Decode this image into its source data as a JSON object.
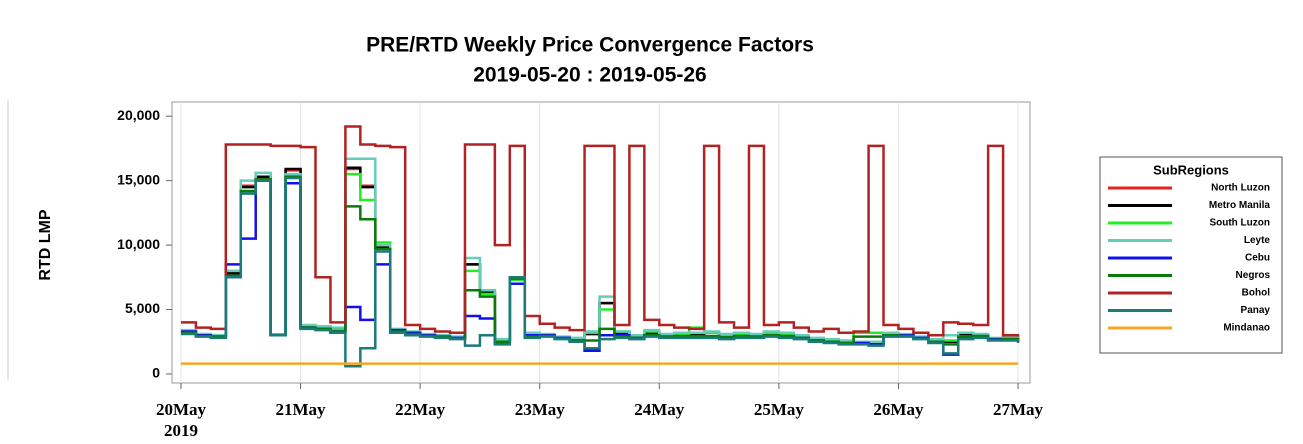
{
  "chart_data": {
    "type": "line",
    "step": true,
    "title": "PRE/RTD Weekly Price Convergence Factors",
    "subtitle": "2019-05-20 : 2019-05-26",
    "y_label": "RTD LMP",
    "x_year": "2019",
    "legend_title": "SubRegions",
    "legend_position": "right",
    "grid": true,
    "xlim": [
      -1.8,
      170.4
    ],
    "xticks": [
      {
        "value": 0,
        "label": "20May"
      },
      {
        "value": 24,
        "label": "21May"
      },
      {
        "value": 48,
        "label": "22May"
      },
      {
        "value": 72,
        "label": "23May"
      },
      {
        "value": 96,
        "label": "24May"
      },
      {
        "value": 120,
        "label": "25May"
      },
      {
        "value": 144,
        "label": "26May"
      },
      {
        "value": 168,
        "label": "27May"
      }
    ],
    "ylim": [
      -700,
      21100
    ],
    "yticks": [
      0,
      {
        "value": 5000,
        "label": "5,000"
      },
      {
        "value": 10000,
        "label": "10,000"
      },
      {
        "value": 15000,
        "label": "15,000"
      },
      {
        "value": 20000,
        "label": "20,000"
      }
    ],
    "x": [
      0,
      3,
      6,
      9,
      12,
      15,
      18,
      21,
      24,
      27,
      30,
      33,
      36,
      39,
      42,
      45,
      48,
      51,
      54,
      57,
      60,
      63,
      66,
      69,
      72,
      75,
      78,
      81,
      84,
      87,
      90,
      93,
      96,
      99,
      102,
      105,
      108,
      111,
      114,
      117,
      120,
      123,
      126,
      129,
      132,
      135,
      138,
      141,
      144,
      147,
      150,
      153,
      156,
      159,
      162,
      165,
      168
    ],
    "series": [
      {
        "name": "North Luzon",
        "color": "#e8211e",
        "values": [
          3350,
          3050,
          2950,
          7900,
          14600,
          15200,
          3050,
          15800,
          3750,
          3650,
          3550,
          15900,
          14600,
          9900,
          3400,
          3200,
          3000,
          2900,
          2800,
          8500,
          6300,
          2600,
          7400,
          3100,
          3000,
          2800,
          2700,
          3100,
          5500,
          3200,
          2900,
          3200,
          3000,
          3100,
          3100,
          3200,
          3000,
          3100,
          3000,
          3200,
          3100,
          2900,
          2700,
          2600,
          2500,
          2400,
          2400,
          3100,
          3000,
          2800,
          2600,
          2500,
          3100,
          3000,
          2700,
          2800,
          2600
        ]
      },
      {
        "name": "Metro Manila",
        "color": "#000000",
        "values": [
          3300,
          3000,
          2900,
          7800,
          14500,
          15300,
          3000,
          15900,
          3700,
          3600,
          3500,
          16000,
          14500,
          9800,
          3400,
          3200,
          3000,
          2900,
          2800,
          8500,
          6300,
          2600,
          7400,
          3100,
          3000,
          2800,
          2700,
          3100,
          5500,
          3200,
          2900,
          3200,
          3000,
          3100,
          3100,
          3200,
          3000,
          3100,
          3000,
          3200,
          3100,
          2900,
          2700,
          2600,
          2500,
          2400,
          2400,
          3100,
          3000,
          2800,
          2600,
          2500,
          3100,
          3000,
          2700,
          2800,
          2600
        ]
      },
      {
        "name": "South Luzon",
        "color": "#22ee22",
        "values": [
          3300,
          3000,
          2900,
          7600,
          14000,
          15000,
          3000,
          15400,
          3600,
          3500,
          3400,
          15500,
          13500,
          10200,
          3400,
          3200,
          3000,
          2900,
          2800,
          8000,
          6200,
          2600,
          7300,
          3100,
          3000,
          2800,
          2700,
          3200,
          5000,
          3300,
          3000,
          3300,
          3000,
          3100,
          3600,
          3200,
          3000,
          3100,
          3000,
          3200,
          3100,
          2900,
          2700,
          2600,
          2500,
          3200,
          3200,
          3100,
          3000,
          2800,
          2600,
          2600,
          3200,
          3000,
          2700,
          2800,
          2600
        ]
      },
      {
        "name": "Leyte",
        "color": "#66ccbb",
        "values": [
          3400,
          3100,
          3000,
          8000,
          15000,
          15600,
          3000,
          15500,
          3800,
          3700,
          3600,
          16700,
          16700,
          10000,
          3500,
          3300,
          3100,
          3000,
          2900,
          9000,
          6500,
          2700,
          7500,
          3200,
          3100,
          2900,
          2800,
          3300,
          6000,
          3300,
          3000,
          3400,
          3100,
          3200,
          3200,
          3300,
          3100,
          3200,
          3100,
          3300,
          3200,
          3000,
          2800,
          2700,
          2600,
          2500,
          2500,
          3200,
          3100,
          2900,
          2700,
          3000,
          3200,
          3100,
          2800,
          2900,
          2700
        ]
      },
      {
        "name": "Cebu",
        "color": "#1010ee",
        "values": [
          3300,
          3000,
          2900,
          8500,
          10500,
          15000,
          3000,
          14800,
          3600,
          3500,
          3300,
          5200,
          4200,
          8500,
          3400,
          3200,
          3000,
          2900,
          2800,
          4500,
          4300,
          2400,
          7000,
          3000,
          3000,
          2800,
          2600,
          1800,
          3000,
          3000,
          2800,
          3000,
          2900,
          2900,
          2900,
          2900,
          2800,
          2900,
          2900,
          3000,
          2900,
          2800,
          2600,
          2500,
          2400,
          2400,
          2300,
          3000,
          3000,
          2800,
          2500,
          1500,
          2800,
          2900,
          2700,
          2700,
          2500
        ]
      },
      {
        "name": "Negros",
        "color": "#0a7a0a",
        "values": [
          3200,
          2950,
          2850,
          7600,
          14200,
          15100,
          3000,
          15300,
          3600,
          3500,
          3300,
          13000,
          12000,
          9700,
          3300,
          3100,
          2950,
          2850,
          2750,
          6500,
          6000,
          2500,
          7400,
          2900,
          2950,
          2750,
          2600,
          2600,
          3500,
          2900,
          2800,
          3000,
          2900,
          2950,
          2950,
          2950,
          2850,
          2950,
          2900,
          3000,
          2950,
          2800,
          2600,
          2500,
          2400,
          2900,
          2900,
          3000,
          2950,
          2750,
          2500,
          2300,
          2900,
          2950,
          2650,
          2700,
          2500
        ]
      },
      {
        "name": "Bohol",
        "color": "#b22222",
        "values": [
          4000,
          3600,
          3500,
          17800,
          17800,
          17800,
          17700,
          17700,
          17600,
          7500,
          4000,
          19200,
          17800,
          17700,
          17600,
          3800,
          3500,
          3300,
          3200,
          17800,
          17800,
          10000,
          17700,
          4500,
          3900,
          3600,
          3400,
          17700,
          17700,
          3800,
          17700,
          4200,
          3800,
          3600,
          3500,
          17700,
          4000,
          3600,
          17700,
          3800,
          4000,
          3600,
          3300,
          3500,
          3200,
          3300,
          17700,
          3800,
          3500,
          3200,
          3000,
          4000,
          3900,
          3800,
          17700,
          3000,
          2900
        ]
      },
      {
        "name": "Panay",
        "color": "#1b7a7a",
        "values": [
          3100,
          2900,
          2800,
          7500,
          14000,
          15000,
          3000,
          15200,
          3500,
          3400,
          3200,
          600,
          2000,
          9500,
          3200,
          3000,
          2900,
          2800,
          2700,
          2200,
          3000,
          2300,
          7500,
          2800,
          2900,
          2700,
          2500,
          2000,
          2700,
          2800,
          2700,
          2900,
          2800,
          2800,
          2800,
          2800,
          2700,
          2800,
          2800,
          2900,
          2800,
          2700,
          2500,
          2400,
          2300,
          2300,
          2200,
          2900,
          2900,
          2700,
          2400,
          1600,
          2700,
          2800,
          2600,
          2600,
          2400
        ]
      },
      {
        "name": "Mindanao",
        "color": "#f5a623",
        "values": [
          800,
          800,
          800,
          800,
          800,
          800,
          800,
          800,
          800,
          800,
          800,
          800,
          800,
          800,
          800,
          800,
          800,
          800,
          800,
          800,
          800,
          800,
          800,
          800,
          800,
          800,
          800,
          800,
          800,
          800,
          800,
          800,
          800,
          800,
          800,
          800,
          800,
          800,
          800,
          800,
          800,
          800,
          800,
          800,
          800,
          800,
          800,
          800,
          800,
          800,
          800,
          800,
          800,
          800,
          800,
          800,
          800
        ]
      }
    ]
  }
}
